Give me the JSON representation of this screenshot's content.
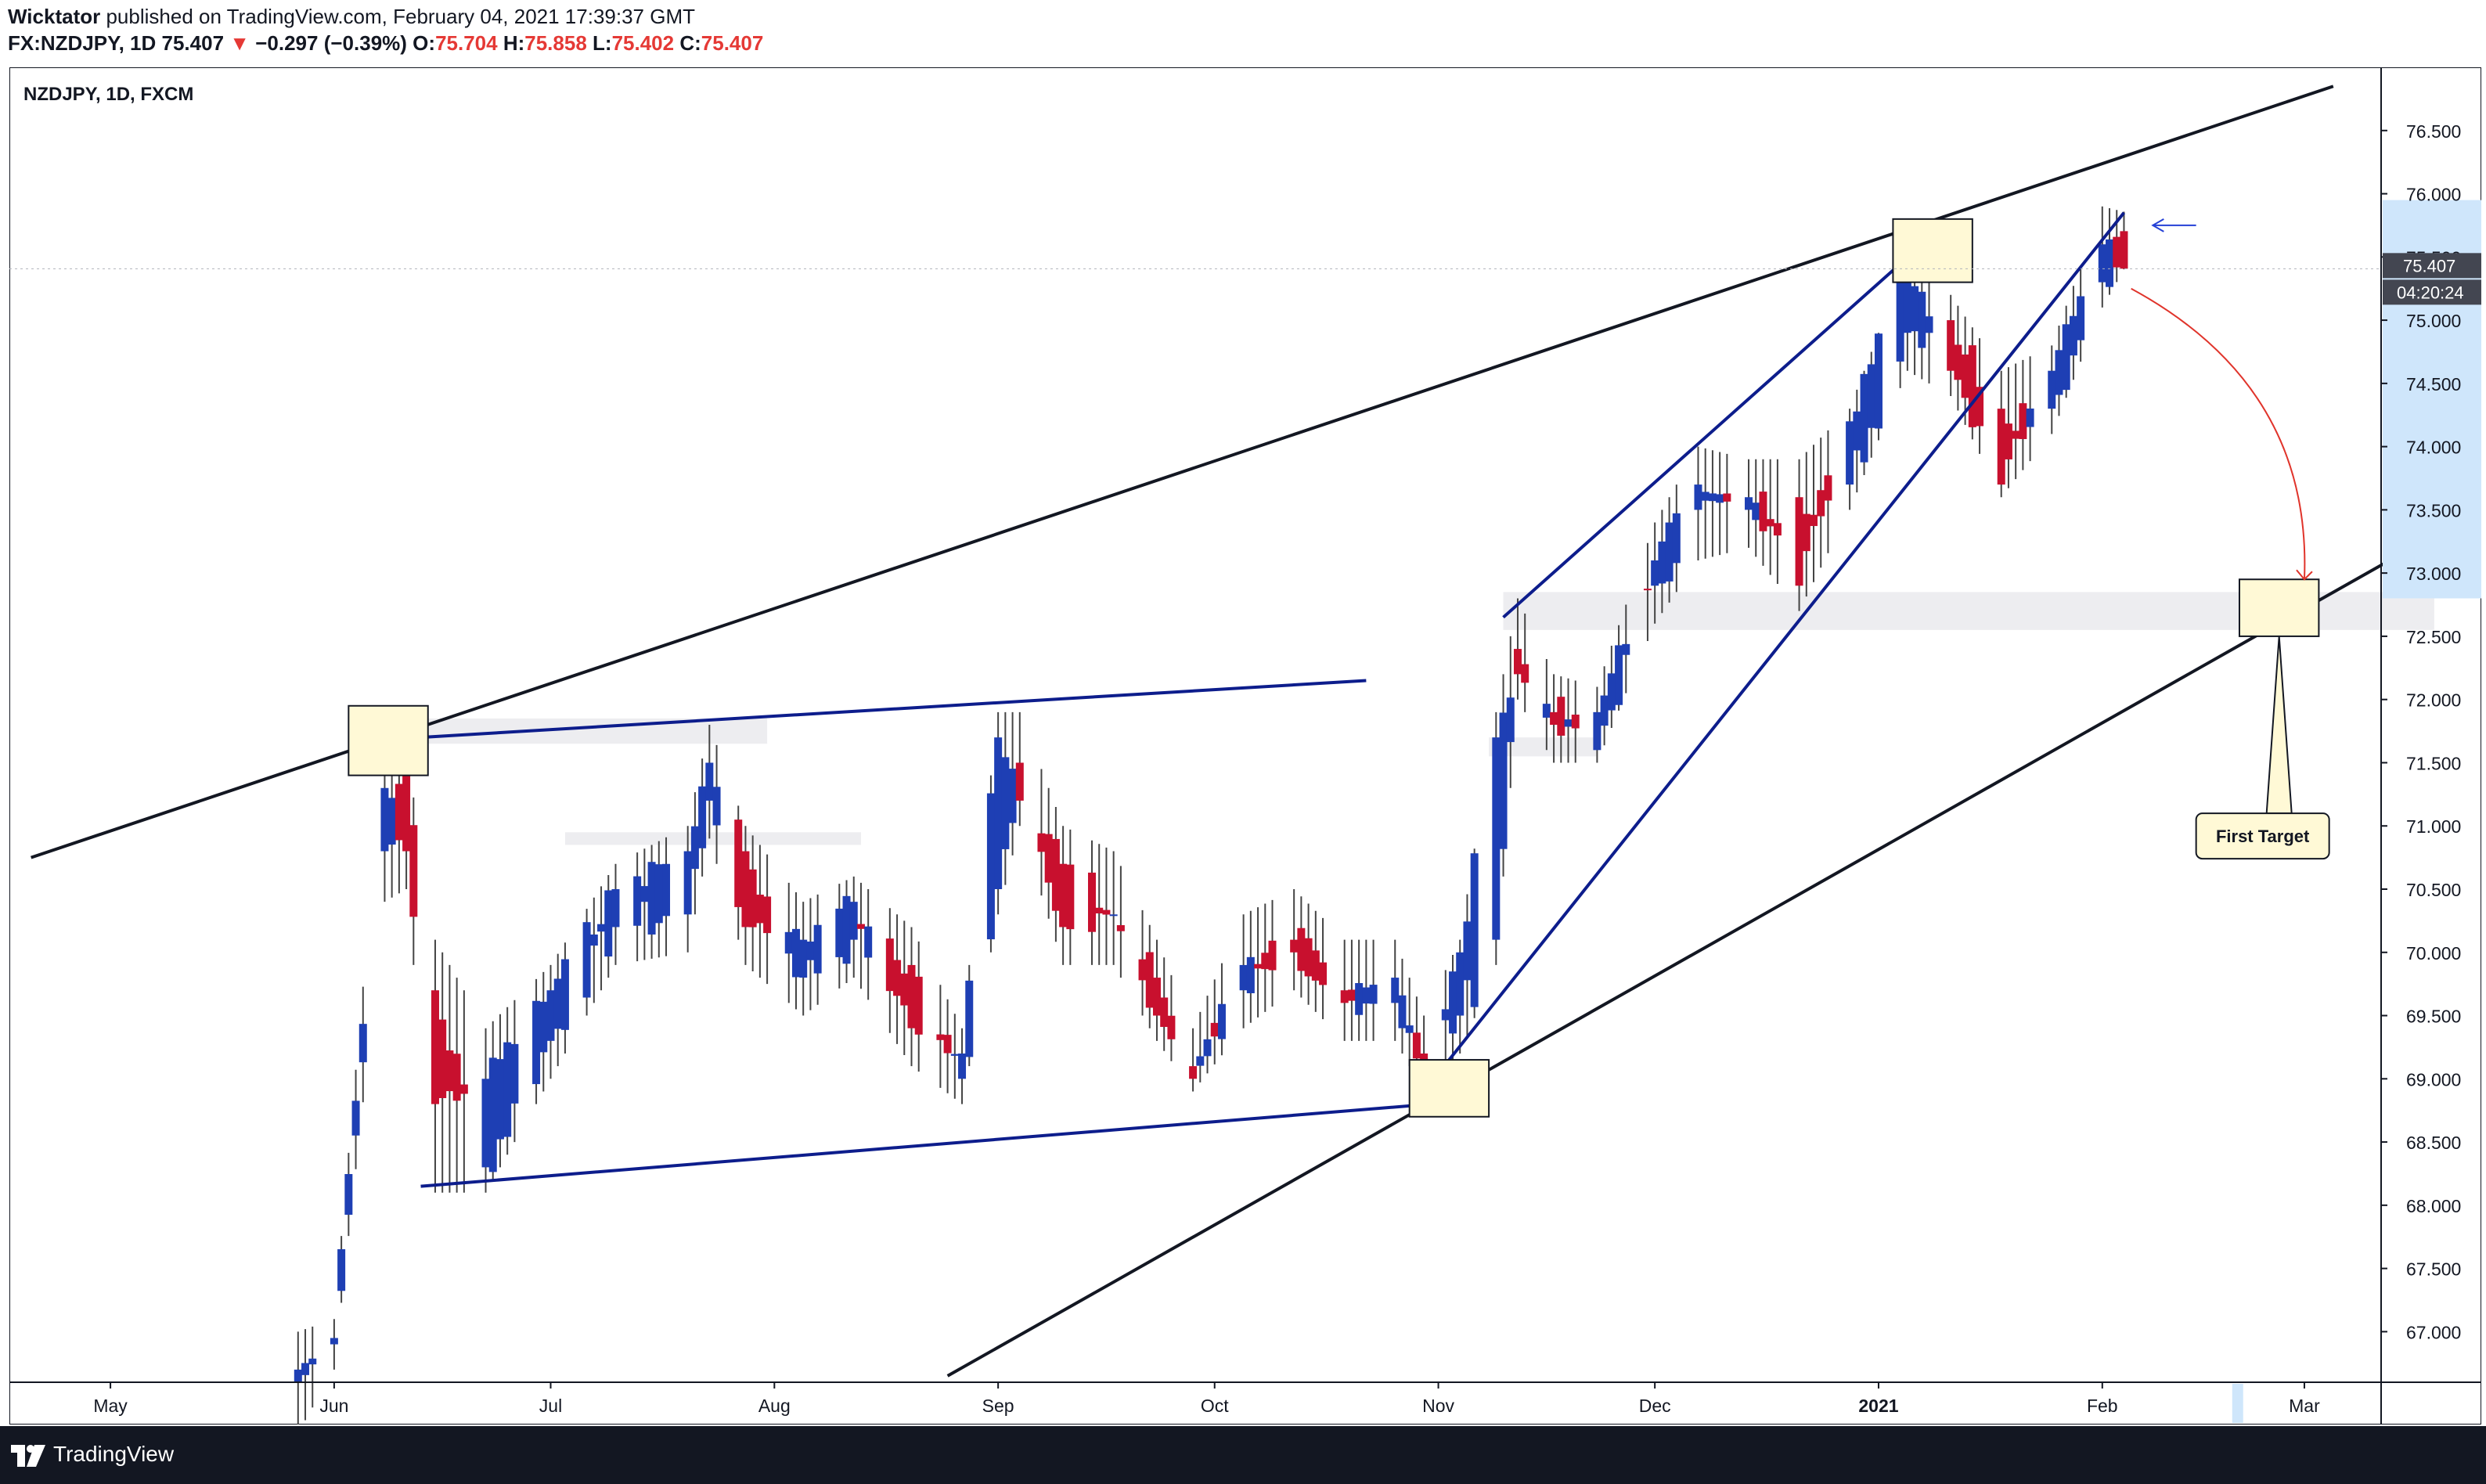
{
  "header": {
    "publisher": "Wicktator",
    "published_text": "published on TradingView.com, February 04, 2021 17:39:37 GMT",
    "symbol_line": "FX:NZDJPY, 1D",
    "last": "75.407",
    "arrow": "▼",
    "change": "−0.297 (−0.39%)",
    "o_label": "O:",
    "o_value": "75.704",
    "h_label": "H:",
    "h_value": "75.858",
    "l_label": "L:",
    "l_value": "75.402",
    "c_label": "C:",
    "c_value": "75.407"
  },
  "footer": {
    "brand": "TradingView"
  },
  "chart_data": {
    "type": "candlestick",
    "title": "NZDJPY, 1D, FXCM",
    "ylim": [
      66.6,
      77.0
    ],
    "y_ticks": [
      "67.000",
      "67.500",
      "68.000",
      "68.500",
      "69.000",
      "69.500",
      "70.000",
      "70.500",
      "71.000",
      "71.500",
      "72.000",
      "72.500",
      "73.000",
      "73.500",
      "74.000",
      "74.500",
      "75.000",
      "75.500",
      "76.000",
      "76.500"
    ],
    "x_ticks": [
      {
        "label": "May",
        "date": "2020-05-01",
        "bold": false
      },
      {
        "label": "Jun",
        "date": "2020-06-01",
        "bold": false
      },
      {
        "label": "Jul",
        "date": "2020-07-01",
        "bold": false
      },
      {
        "label": "Aug",
        "date": "2020-08-01",
        "bold": false
      },
      {
        "label": "Sep",
        "date": "2020-09-01",
        "bold": false
      },
      {
        "label": "Oct",
        "date": "2020-10-01",
        "bold": false
      },
      {
        "label": "Nov",
        "date": "2020-11-01",
        "bold": false
      },
      {
        "label": "Dec",
        "date": "2020-12-01",
        "bold": false
      },
      {
        "label": "2021",
        "date": "2021-01-01",
        "bold": true
      },
      {
        "label": "Feb",
        "date": "2021-02-01",
        "bold": false
      },
      {
        "label": "Mar",
        "date": "2021-03-01",
        "bold": false
      }
    ],
    "price_label": "75.407",
    "countdown_label": "04:20:24",
    "annotation_label": "First Target",
    "colors": {
      "up": "#1e3fb4",
      "down": "#c8102e",
      "trend": "#131722",
      "channel": "#0d1d8c",
      "target_box": "#fff9d6"
    },
    "anchors": [
      {
        "date": "2020-05-27",
        "open": 66.6,
        "high": 67.0,
        "low": 66.2,
        "close": 66.7
      },
      {
        "date": "2020-06-01",
        "open": 66.9,
        "high": 67.1,
        "low": 66.7,
        "close": 66.95
      },
      {
        "date": "2020-06-08",
        "open": 70.8,
        "high": 71.7,
        "low": 70.4,
        "close": 71.3
      },
      {
        "date": "2020-06-11",
        "open": 71.4,
        "high": 71.6,
        "low": 70.5,
        "close": 70.8
      },
      {
        "date": "2020-06-15",
        "open": 69.7,
        "high": 70.1,
        "low": 68.1,
        "close": 68.8
      },
      {
        "date": "2020-06-22",
        "open": 68.3,
        "high": 69.4,
        "low": 68.1,
        "close": 69.0
      },
      {
        "date": "2020-07-01",
        "open": 69.3,
        "high": 69.9,
        "low": 69.0,
        "close": 69.7
      },
      {
        "date": "2020-07-10",
        "open": 70.2,
        "high": 70.7,
        "low": 69.9,
        "close": 70.5
      },
      {
        "date": "2020-07-20",
        "open": 70.3,
        "high": 71.0,
        "low": 70.0,
        "close": 70.8
      },
      {
        "date": "2020-07-23",
        "open": 71.2,
        "high": 71.8,
        "low": 70.9,
        "close": 71.5
      },
      {
        "date": "2020-07-28",
        "open": 70.8,
        "high": 71.0,
        "low": 69.9,
        "close": 70.2
      },
      {
        "date": "2020-08-05",
        "open": 69.8,
        "high": 70.4,
        "low": 69.5,
        "close": 70.1
      },
      {
        "date": "2020-08-12",
        "open": 70.1,
        "high": 70.6,
        "low": 69.8,
        "close": 70.4
      },
      {
        "date": "2020-08-20",
        "open": 69.9,
        "high": 70.2,
        "low": 69.1,
        "close": 69.4
      },
      {
        "date": "2020-08-27",
        "open": 69.0,
        "high": 69.4,
        "low": 68.8,
        "close": 69.2
      },
      {
        "date": "2020-09-01",
        "open": 70.5,
        "high": 71.9,
        "low": 70.3,
        "close": 71.7
      },
      {
        "date": "2020-09-04",
        "open": 71.5,
        "high": 71.9,
        "low": 71.0,
        "close": 71.2
      },
      {
        "date": "2020-09-10",
        "open": 70.7,
        "high": 71.0,
        "low": 69.9,
        "close": 70.2
      },
      {
        "date": "2020-09-17",
        "open": 70.3,
        "high": 70.8,
        "low": 69.9,
        "close": 70.3
      },
      {
        "date": "2020-09-23",
        "open": 69.8,
        "high": 70.1,
        "low": 69.3,
        "close": 69.5
      },
      {
        "date": "2020-09-28",
        "open": 69.1,
        "high": 69.4,
        "low": 68.9,
        "close": 69.0
      },
      {
        "date": "2020-10-05",
        "open": 69.7,
        "high": 70.3,
        "low": 69.4,
        "close": 69.9
      },
      {
        "date": "2020-10-12",
        "open": 70.1,
        "high": 70.5,
        "low": 69.7,
        "close": 70.0
      },
      {
        "date": "2020-10-19",
        "open": 69.7,
        "high": 70.1,
        "low": 69.3,
        "close": 69.6
      },
      {
        "date": "2020-10-26",
        "open": 69.6,
        "high": 70.1,
        "low": 69.3,
        "close": 69.8
      },
      {
        "date": "2020-10-30",
        "open": 69.2,
        "high": 69.5,
        "low": 68.9,
        "close": 69.0
      },
      {
        "date": "2020-11-04",
        "open": 69.5,
        "high": 70.1,
        "low": 69.2,
        "close": 70.0
      },
      {
        "date": "2020-11-09",
        "open": 70.1,
        "high": 71.9,
        "low": 69.9,
        "close": 71.7
      },
      {
        "date": "2020-11-12",
        "open": 72.4,
        "high": 72.8,
        "low": 72.0,
        "close": 72.2
      },
      {
        "date": "2020-11-17",
        "open": 71.9,
        "high": 72.2,
        "low": 71.5,
        "close": 71.8
      },
      {
        "date": "2020-11-23",
        "open": 71.6,
        "high": 72.1,
        "low": 71.5,
        "close": 71.9
      },
      {
        "date": "2020-12-01",
        "open": 72.9,
        "high": 73.4,
        "low": 72.6,
        "close": 73.1
      },
      {
        "date": "2020-12-07",
        "open": 73.5,
        "high": 74.0,
        "low": 73.1,
        "close": 73.7
      },
      {
        "date": "2020-12-14",
        "open": 73.5,
        "high": 73.9,
        "low": 73.2,
        "close": 73.6
      },
      {
        "date": "2020-12-21",
        "open": 73.6,
        "high": 73.9,
        "low": 72.7,
        "close": 72.9
      },
      {
        "date": "2020-12-28",
        "open": 73.7,
        "high": 74.3,
        "low": 73.5,
        "close": 74.2
      },
      {
        "date": "2021-01-05",
        "open": 74.9,
        "high": 75.5,
        "low": 74.6,
        "close": 75.4
      },
      {
        "date": "2021-01-11",
        "open": 75.0,
        "high": 75.2,
        "low": 74.4,
        "close": 74.6
      },
      {
        "date": "2021-01-18",
        "open": 74.3,
        "high": 74.6,
        "low": 73.6,
        "close": 73.7
      },
      {
        "date": "2021-01-25",
        "open": 74.3,
        "high": 74.8,
        "low": 74.1,
        "close": 74.6
      },
      {
        "date": "2021-02-01",
        "open": 75.3,
        "high": 75.9,
        "low": 75.1,
        "close": 75.6
      },
      {
        "date": "2021-02-04",
        "open": 75.704,
        "high": 75.858,
        "low": 75.402,
        "close": 75.407
      }
    ],
    "drawings": {
      "trendlines": [
        {
          "from": [
            "2020-04-20",
            70.75
          ],
          "to": [
            "2021-03-05",
            76.85
          ],
          "style": "solid-black"
        },
        {
          "from": [
            "2020-08-25",
            66.65
          ],
          "to": [
            "2021-03-19",
            73.3
          ],
          "style": "solid-black"
        },
        {
          "from": [
            "2020-06-13",
            71.7
          ],
          "to": [
            "2020-10-22",
            72.15
          ],
          "style": "solid-blue"
        },
        {
          "from": [
            "2020-06-13",
            68.15
          ],
          "to": [
            "2020-10-31",
            68.8
          ],
          "style": "solid-blue"
        },
        {
          "from": [
            "2020-11-10",
            72.65
          ],
          "to": [
            "2021-01-10",
            75.75
          ],
          "style": "solid-blue"
        },
        {
          "from": [
            "2020-10-30",
            68.9
          ],
          "to": [
            "2021-02-04",
            75.85
          ],
          "style": "solid-blue"
        }
      ],
      "zones": [
        {
          "from": "2020-06-06",
          "to": "2020-07-31",
          "top": 71.85,
          "bottom": 71.65
        },
        {
          "from": "2020-07-03",
          "to": "2020-08-13",
          "top": 70.95,
          "bottom": 70.85
        },
        {
          "from": "2020-11-10",
          "to": "2021-03-19",
          "top": 72.85,
          "bottom": 72.55
        },
        {
          "from": "2020-11-08",
          "to": "2020-11-23",
          "top": 71.7,
          "bottom": 71.55
        }
      ],
      "target_boxes": [
        {
          "from": "2020-06-03",
          "to": "2020-06-14",
          "top": 71.95,
          "bottom": 71.4
        },
        {
          "from": "2020-10-28",
          "to": "2020-11-08",
          "top": 69.15,
          "bottom": 68.7
        },
        {
          "from": "2021-01-03",
          "to": "2021-01-14",
          "top": 75.8,
          "bottom": 75.3
        },
        {
          "from": "2021-02-20",
          "to": "2021-03-03",
          "top": 72.95,
          "bottom": 72.5
        }
      ]
    }
  }
}
